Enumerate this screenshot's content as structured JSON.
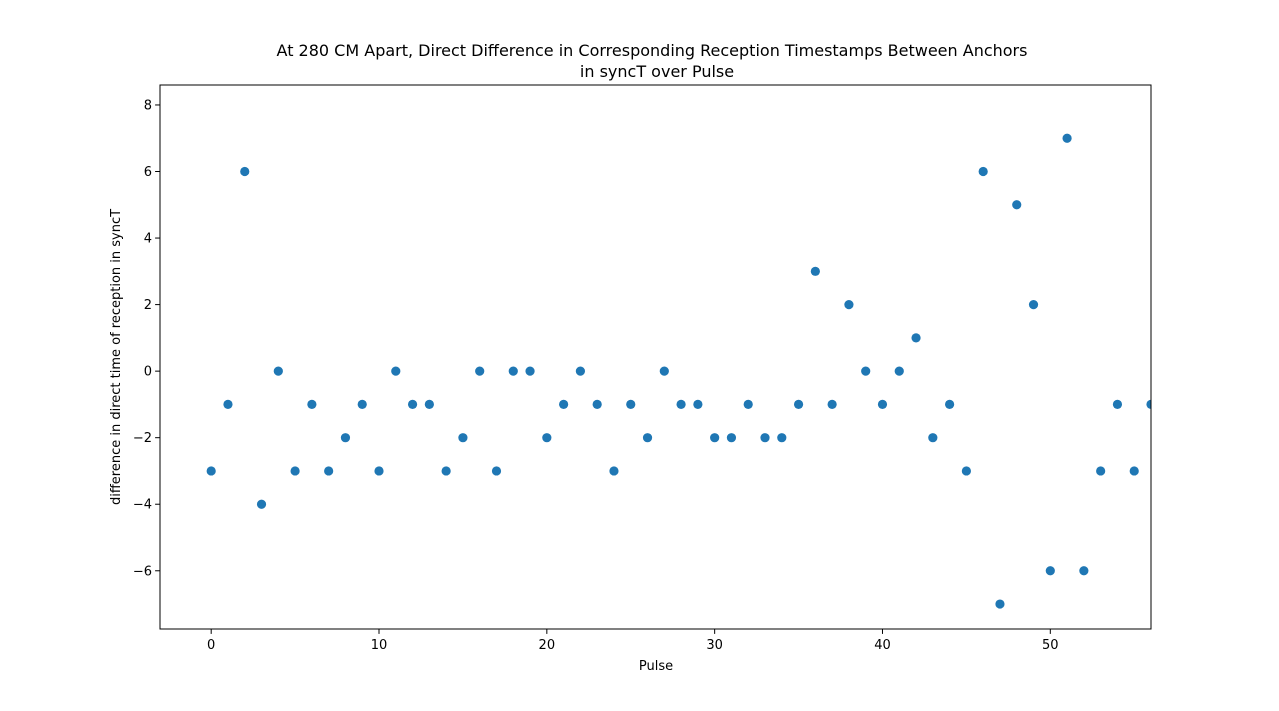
{
  "colors": {
    "marker": "#1f77b4",
    "axes": "#000000",
    "background": "#ffffff"
  },
  "chart_data": {
    "type": "scatter",
    "title_lines": [
      "At 280 CM Apart, Direct Difference in Corresponding Reception Timestamps Between Anchors",
      "in syncT over Pulse"
    ],
    "xlabel": "Pulse",
    "ylabel": "difference in direct time of reception in syncT",
    "xlim": [
      -3.05,
      56
    ],
    "ylim": [
      -7.75,
      8.6
    ],
    "xticks": [
      0,
      10,
      20,
      30,
      40,
      50
    ],
    "yticks": [
      -6,
      -4,
      -2,
      0,
      2,
      4,
      6,
      8
    ],
    "grid": false,
    "x": [
      0,
      1,
      2,
      3,
      4,
      5,
      6,
      7,
      8,
      9,
      10,
      11,
      12,
      13,
      14,
      15,
      16,
      17,
      18,
      19,
      20,
      21,
      22,
      23,
      24,
      25,
      26,
      27,
      28,
      29,
      30,
      31,
      32,
      33,
      34,
      35,
      36,
      37,
      38,
      39,
      40,
      41,
      42,
      43,
      44,
      45,
      46,
      47,
      48,
      49,
      50,
      51,
      52,
      53,
      54,
      55,
      56
    ],
    "y": [
      -3,
      -1,
      6,
      -4,
      0,
      -3,
      -1,
      -3,
      -2,
      -1,
      -3,
      0,
      -1,
      -1,
      -3,
      -2,
      0,
      -3,
      0,
      0,
      -2,
      -1,
      0,
      -1,
      -3,
      -1,
      -2,
      0,
      -1,
      -1,
      -2,
      -2,
      -1,
      -2,
      -2,
      -1,
      3,
      -1,
      2,
      0,
      -1,
      0,
      1,
      -2,
      -1,
      -3,
      6,
      -7,
      5,
      2,
      -6,
      7,
      -6,
      -3,
      -1,
      -3,
      -1
    ]
  }
}
